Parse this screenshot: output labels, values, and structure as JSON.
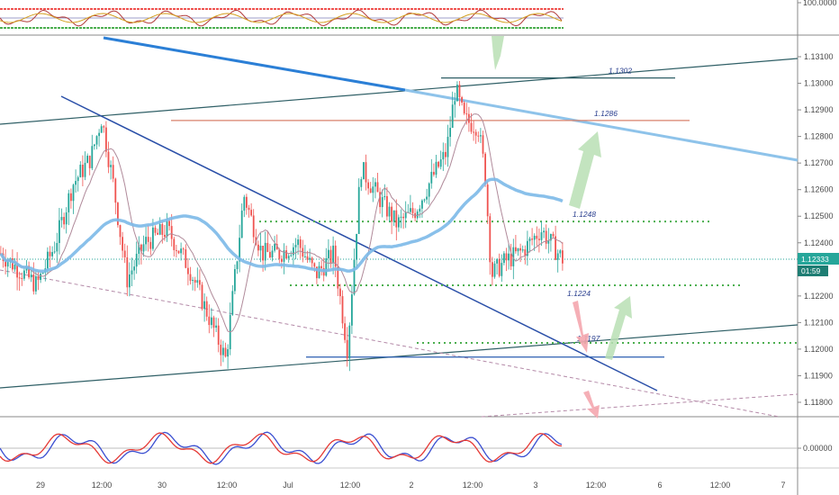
{
  "chart_data": {
    "type": "candlestick",
    "instrument_note": "",
    "price_axis": {
      "ticks": [
        "1.13100",
        "1.13000",
        "1.12900",
        "1.12800",
        "1.12700",
        "1.12600",
        "1.12500",
        "1.12400",
        "1.12200",
        "1.12100",
        "1.12000",
        "1.11900",
        "1.11800"
      ],
      "ylim": [
        1.1174,
        1.1318
      ]
    },
    "time_axis": {
      "ticks": [
        "29",
        "12:00",
        "30",
        "12:00",
        "Jul",
        "12:00",
        "2",
        "12:00",
        "3",
        "12:00",
        "6",
        "12:00",
        "7"
      ]
    },
    "current_price": {
      "value": "1.12333",
      "countdown": "01:59",
      "price": 1.12333
    },
    "levels": [
      {
        "label": "1.1302",
        "price": 1.1302,
        "color": "#2f5f66",
        "style": "solid"
      },
      {
        "label": "1.1286",
        "price": 1.1286,
        "color": "#d9826b",
        "style": "solid"
      },
      {
        "label": "1.1248",
        "price": 1.1248,
        "color": "#4caf50",
        "style": "dotted"
      },
      {
        "label": "1.1224",
        "price": 1.1224,
        "color": "#4caf50",
        "style": "dotted"
      },
      {
        "label": "1.1197",
        "price": 1.1197,
        "color": "#2a5db0",
        "style": "solid"
      }
    ],
    "top_indicator": {
      "axis_label": "100.0000"
    },
    "bottom_indicator": {
      "axis_label": "0.00000"
    },
    "colors": {
      "up": "#26a69a",
      "down": "#ef5350",
      "ma_slow": "#7cb9e8",
      "ma_fast": "#b08a9a"
    }
  }
}
